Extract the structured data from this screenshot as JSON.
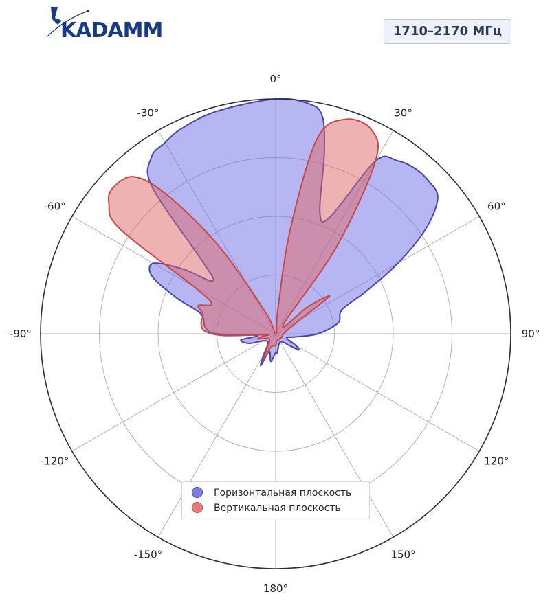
{
  "logo": {
    "text": "KADAMM"
  },
  "badge": {
    "frequency": "1710–2170 МГц"
  },
  "chart_data": {
    "type": "polar",
    "theta_unit": "deg",
    "zero_location": "top",
    "direction": "clockwise",
    "theta_ticks": [
      0,
      30,
      60,
      90,
      120,
      150,
      180,
      -150,
      -120,
      -90,
      -60,
      -30
    ],
    "theta_tick_labels": [
      "0°",
      "30°",
      "60°",
      "90°",
      "120°",
      "150°",
      "180°",
      "-150°",
      "-120°",
      "-90°",
      "-60°",
      "-30°"
    ],
    "radial_grid": [
      0.25,
      0.5,
      0.75,
      1.0
    ],
    "radial_labels_shown": false,
    "rlim": [
      0,
      1
    ],
    "legend_position": "bottom-center",
    "series": [
      {
        "name": "Горизонтальная плоскость",
        "color": "#5b5bdd",
        "edge": "#4545b0",
        "points": [
          [
            -180,
            0.08
          ],
          [
            -170,
            0.12
          ],
          [
            -160,
            0.08
          ],
          [
            -155,
            0.15
          ],
          [
            -150,
            0.1
          ],
          [
            -140,
            0.05
          ],
          [
            -120,
            0.06
          ],
          [
            -110,
            0.12
          ],
          [
            -100,
            0.15
          ],
          [
            -95,
            0.08
          ],
          [
            -90,
            0.25
          ],
          [
            -85,
            0.3
          ],
          [
            -75,
            0.33
          ],
          [
            -70,
            0.45
          ],
          [
            -65,
            0.58
          ],
          [
            -60,
            0.6
          ],
          [
            -55,
            0.48
          ],
          [
            -50,
            0.35
          ],
          [
            -45,
            0.45
          ],
          [
            -40,
            0.82
          ],
          [
            -35,
            0.92
          ],
          [
            -30,
            0.94
          ],
          [
            -25,
            0.96
          ],
          [
            -15,
            0.98
          ],
          [
            0,
            1.0
          ],
          [
            8,
            0.99
          ],
          [
            12,
            0.95
          ],
          [
            15,
            0.8
          ],
          [
            20,
            0.55
          ],
          [
            25,
            0.55
          ],
          [
            30,
            0.85
          ],
          [
            35,
            0.9
          ],
          [
            40,
            0.92
          ],
          [
            45,
            0.92
          ],
          [
            50,
            0.9
          ],
          [
            55,
            0.78
          ],
          [
            60,
            0.6
          ],
          [
            65,
            0.42
          ],
          [
            70,
            0.3
          ],
          [
            80,
            0.27
          ],
          [
            90,
            0.18
          ],
          [
            100,
            0.08
          ],
          [
            110,
            0.05
          ],
          [
            120,
            0.1
          ],
          [
            125,
            0.12
          ],
          [
            130,
            0.08
          ],
          [
            150,
            0.04
          ],
          [
            175,
            0.08
          ],
          [
            180,
            0.08
          ]
        ]
      },
      {
        "name": "Вертикальная плоскость",
        "color": "#e06666",
        "edge": "#c94646",
        "points": [
          [
            -180,
            0.05
          ],
          [
            -160,
            0.06
          ],
          [
            -155,
            0.12
          ],
          [
            -150,
            0.08
          ],
          [
            -140,
            0.04
          ],
          [
            -120,
            0.04
          ],
          [
            -110,
            0.06
          ],
          [
            -105,
            0.08
          ],
          [
            -100,
            0.05
          ],
          [
            -95,
            0.04
          ],
          [
            -92,
            0.22
          ],
          [
            -88,
            0.3
          ],
          [
            -82,
            0.32
          ],
          [
            -75,
            0.32
          ],
          [
            -70,
            0.35
          ],
          [
            -65,
            0.3
          ],
          [
            -60,
            0.4
          ],
          [
            -56,
            0.8
          ],
          [
            -52,
            0.9
          ],
          [
            -48,
            0.93
          ],
          [
            -42,
            0.9
          ],
          [
            -38,
            0.75
          ],
          [
            -33,
            0.45
          ],
          [
            -25,
            0.1
          ],
          [
            0,
            0.0
          ],
          [
            5,
            0.1
          ],
          [
            8,
            0.45
          ],
          [
            12,
            0.85
          ],
          [
            18,
            0.96
          ],
          [
            25,
            0.96
          ],
          [
            30,
            0.85
          ],
          [
            35,
            0.45
          ],
          [
            40,
            0.05
          ],
          [
            50,
            0.18
          ],
          [
            55,
            0.28
          ],
          [
            60,
            0.12
          ],
          [
            80,
            0.04
          ],
          [
            120,
            0.03
          ],
          [
            170,
            0.03
          ],
          [
            180,
            0.05
          ]
        ]
      }
    ]
  }
}
